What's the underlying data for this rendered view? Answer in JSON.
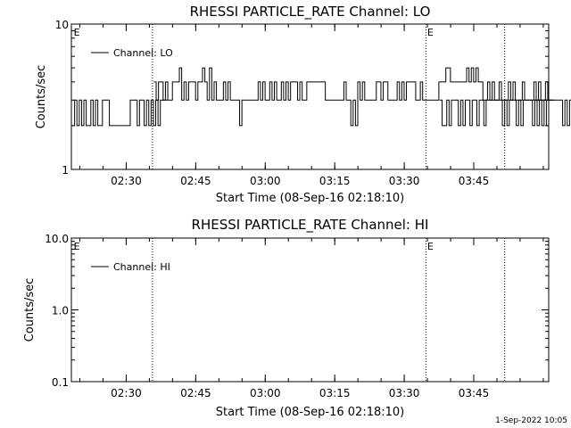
{
  "chart_data": [
    {
      "type": "line",
      "title": "RHESSI PARTICLE_RATE Channel: LO",
      "xlabel": "Start Time (08-Sep-16 02:18:10)",
      "ylabel": "Counts/sec",
      "yscale": "log",
      "ylim": [
        1,
        10
      ],
      "yticks": [
        "1",
        "10"
      ],
      "xlim_minutes": [
        0,
        103
      ],
      "xticks": [
        "02:30",
        "02:45",
        "03:00",
        "03:15",
        "03:30",
        "03:45"
      ],
      "xtick_minutes": [
        11.83,
        26.83,
        41.83,
        56.83,
        71.83,
        86.83
      ],
      "event_lines_minutes": [
        17.5,
        76.5,
        93.5
      ],
      "event_markers": [
        {
          "label": "E",
          "minute": 0.5
        },
        {
          "label": "E",
          "minute": 76.8
        }
      ],
      "legend": {
        "position": "top-left",
        "entries": [
          "Channel: LO"
        ]
      },
      "series": [
        {
          "name": "Channel: LO",
          "segments": [
            {
              "start": 0.2,
              "step": 0.5,
              "values": [
                2,
                3,
                2,
                3,
                2,
                3,
                2,
                2,
                3,
                2,
                3,
                2,
                2,
                3,
                3,
                3,
                2,
                2,
                2,
                2,
                2,
                2,
                2,
                2,
                2,
                3,
                3,
                3,
                2,
                3,
                3,
                2,
                3,
                2,
                3,
                2,
                3,
                2,
                3,
                3,
                3
              ]
            },
            {
              "start": 17.8,
              "step": 0.5,
              "values": [
                4,
                3,
                4,
                4,
                3,
                4,
                3,
                3,
                4,
                4,
                4,
                5,
                3,
                4,
                3,
                4,
                4,
                4,
                3,
                4,
                4,
                5,
                4,
                3,
                5,
                3,
                4,
                3,
                3,
                3,
                4,
                3,
                4,
                3,
                3,
                3,
                3,
                2,
                3,
                3,
                3,
                3,
                3,
                3,
                3,
                4,
                3,
                4,
                3,
                3,
                4,
                3,
                4,
                3,
                3,
                4,
                3,
                4,
                3,
                4,
                4,
                4,
                3,
                4,
                3,
                3,
                4,
                4,
                4,
                4,
                4,
                4,
                4,
                4,
                3,
                3,
                3,
                3,
                3,
                3,
                3,
                3,
                4,
                3,
                3,
                2,
                3,
                2,
                4,
                3,
                4,
                3,
                3,
                3,
                3,
                3,
                4,
                4,
                3,
                4,
                4,
                3,
                3,
                3,
                3,
                4,
                3,
                4,
                3,
                4,
                4,
                4,
                4,
                3,
                3,
                4,
                3,
                3,
                3,
                3,
                3,
                3,
                3,
                4,
                4,
                4,
                5,
                5,
                4,
                4,
                4,
                4,
                4,
                4,
                4,
                5,
                4,
                5,
                4,
                5,
                4,
                4,
                3,
                3,
                4,
                3,
                4,
                3,
                3,
                4,
                3,
                3,
                3,
                4,
                3,
                4,
                3,
                3,
                3,
                4,
                3,
                3,
                3,
                3,
                4,
                3,
                4,
                3,
                3,
                4,
                3,
                3,
                3
              ]
            },
            {
              "start": 79.5,
              "step": 0.5,
              "values": [
                3,
                2,
                2,
                3,
                2,
                3,
                3,
                3,
                2,
                3,
                2,
                3,
                3,
                2,
                3,
                3,
                2,
                3,
                3,
                2,
                3,
                3,
                3,
                3,
                3,
                3,
                3,
                2,
                3,
                2,
                3,
                3,
                3,
                2,
                3,
                2,
                3,
                3,
                3,
                3,
                2,
                3,
                3,
                3,
                3,
                3,
                3,
                3,
                3,
                3,
                3,
                3,
                3,
                2,
                3,
                2,
                3,
                3,
                3,
                3
              ]
            },
            {
              "start": 100.0,
              "step": 0.5,
              "values": [
                3,
                2,
                3,
                2,
                3,
                2,
                3
              ]
            }
          ]
        }
      ]
    },
    {
      "type": "line",
      "title": "RHESSI PARTICLE_RATE Channel: HI",
      "xlabel": "Start Time (08-Sep-16 02:18:10)",
      "ylabel": "Counts/sec",
      "yscale": "log",
      "ylim": [
        0.1,
        10
      ],
      "yticks": [
        "0.1",
        "1.0",
        "10.0"
      ],
      "xlim_minutes": [
        0,
        103
      ],
      "xticks": [
        "02:30",
        "02:45",
        "03:00",
        "03:15",
        "03:30",
        "03:45"
      ],
      "xtick_minutes": [
        11.83,
        26.83,
        41.83,
        56.83,
        71.83,
        86.83
      ],
      "event_lines_minutes": [
        17.5,
        76.5,
        93.5
      ],
      "event_markers": [
        {
          "label": "E",
          "minute": 0.5
        },
        {
          "label": "E",
          "minute": 76.8
        }
      ],
      "legend": {
        "position": "top-left",
        "entries": [
          "Channel: HI"
        ]
      },
      "series": [
        {
          "name": "Channel: HI",
          "segments": []
        }
      ]
    }
  ],
  "footer": {
    "timestamp": "1-Sep-2022 10:05"
  }
}
